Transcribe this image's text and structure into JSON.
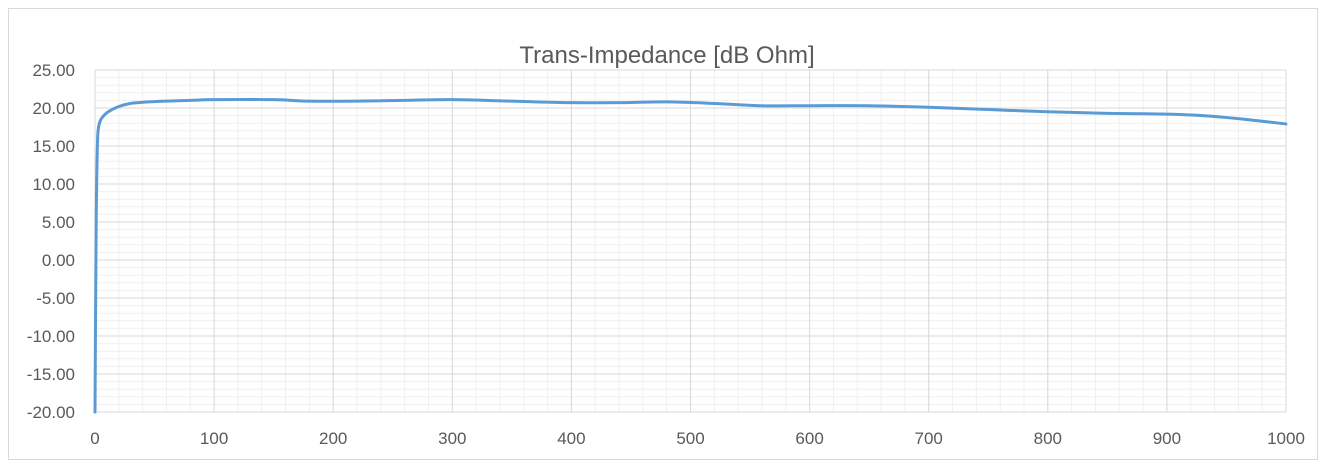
{
  "chart_data": {
    "type": "line",
    "title": "Trans-Impedance  [dB Ohm]",
    "xlabel": "",
    "ylabel": "",
    "xlim": [
      0,
      1000
    ],
    "ylim": [
      -20,
      25
    ],
    "x_ticks": [
      0,
      100,
      200,
      300,
      400,
      500,
      600,
      700,
      800,
      900,
      1000
    ],
    "x_tick_labels": [
      "0",
      "100",
      "200",
      "300",
      "400",
      "500",
      "600",
      "700",
      "800",
      "900",
      "1000"
    ],
    "y_ticks": [
      -20,
      -15,
      -10,
      -5,
      0,
      5,
      10,
      15,
      20,
      25
    ],
    "y_tick_labels": [
      "-20.00",
      "-15.00",
      "-10.00",
      "-5.00",
      "0.00",
      "5.00",
      "10.00",
      "15.00",
      "20.00",
      "25.00"
    ],
    "grid": {
      "major": true,
      "minor": true,
      "x_minor_step": 20,
      "y_minor_step": 1
    },
    "legend": "none",
    "line_color": "#5b9bd5",
    "grid_major_color": "#d9d9d9",
    "grid_minor_color": "#f0f0f0",
    "series": [
      {
        "x": [
          0,
          1,
          2,
          3,
          5,
          8,
          12,
          20,
          30,
          45,
          60,
          80,
          100,
          150,
          180,
          220,
          260,
          300,
          350,
          400,
          440,
          480,
          520,
          560,
          600,
          650,
          700,
          750,
          800,
          850,
          900,
          930,
          960,
          1000
        ],
        "y": [
          -20,
          5,
          15,
          17.5,
          18.5,
          19.1,
          19.6,
          20.2,
          20.6,
          20.8,
          20.9,
          21.0,
          21.1,
          21.1,
          20.9,
          20.9,
          21.0,
          21.1,
          20.9,
          20.7,
          20.7,
          20.8,
          20.6,
          20.3,
          20.3,
          20.3,
          20.1,
          19.8,
          19.5,
          19.3,
          19.2,
          19.0,
          18.6,
          17.9
        ]
      }
    ]
  }
}
